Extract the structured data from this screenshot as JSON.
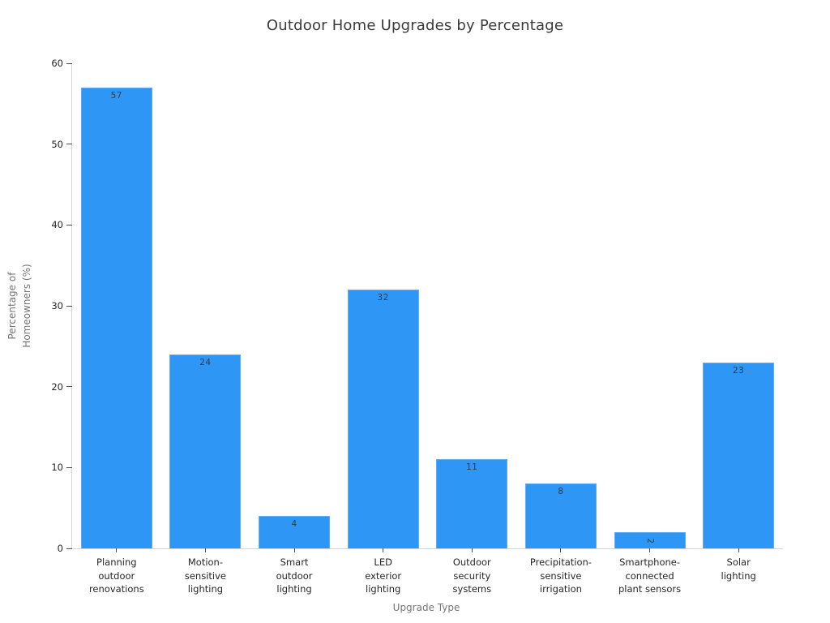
{
  "chart_data": {
    "type": "bar",
    "title": "Outdoor Home Upgrades by Percentage",
    "xlabel": "Upgrade Type",
    "ylabel": "Percentage of\nHomeowners (%)",
    "categories": [
      "Planning outdoor renovations",
      "Motion-sensitive lighting",
      "Smart outdoor lighting",
      "LED exterior lighting",
      "Outdoor security systems",
      "Precipitation-sensitive irrigation",
      "Smartphone-connected plant sensors",
      "Solar lighting"
    ],
    "category_label_lines": [
      [
        "Planning",
        "outdoor",
        "renovations"
      ],
      [
        "Motion-",
        "sensitive",
        "lighting"
      ],
      [
        "Smart",
        "outdoor",
        "lighting"
      ],
      [
        "LED",
        "exterior",
        "lighting"
      ],
      [
        "Outdoor",
        "security",
        "systems"
      ],
      [
        "Precipitation-",
        "sensitive",
        "irrigation"
      ],
      [
        "Smartphone-",
        "connected",
        "plant sensors"
      ],
      [
        "Solar",
        "lighting"
      ]
    ],
    "values": [
      57,
      24,
      4,
      32,
      11,
      8,
      2,
      23
    ],
    "bar_labels": [
      "57",
      "24",
      "4",
      "32",
      "11",
      "8",
      "2",
      "23"
    ],
    "ylim": [
      0,
      60
    ],
    "yticks": [
      0,
      10,
      20,
      30,
      40,
      50,
      60
    ],
    "grid": false,
    "legend": false,
    "layout": {
      "legend_position": "none",
      "value_labels": "inside-top"
    },
    "colors": {
      "background": "#ffffff",
      "bar_fill": "#2E96F5",
      "bar_edge": "#64ACF1",
      "bar_label_text": "#333A40",
      "tick_label": "#262626",
      "axis_label": "#757575",
      "title": "#3A3A3A",
      "spine": "#D4D4D4",
      "tick_mark": "#4D4D4D"
    }
  }
}
